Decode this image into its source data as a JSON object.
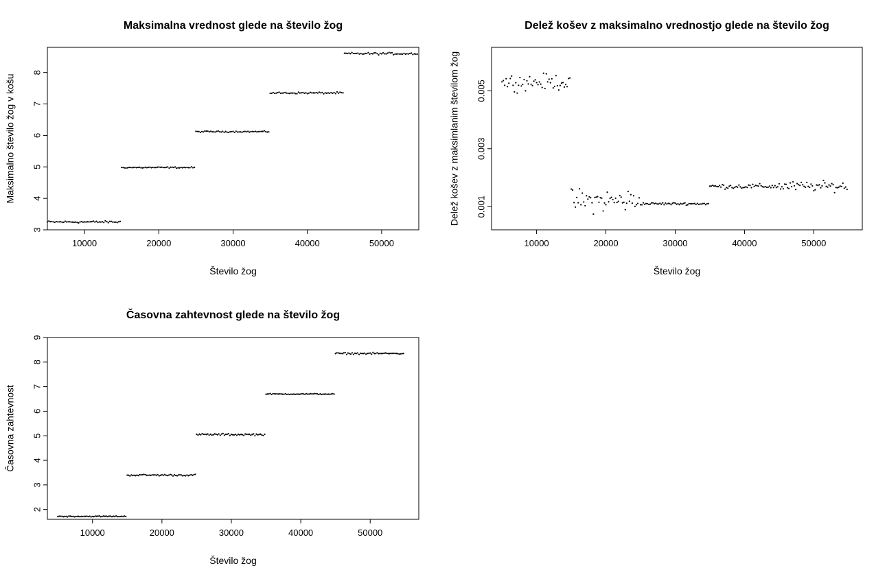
{
  "chart_data": [
    {
      "type": "scatter",
      "title": "Maksimalna vrednost glede na število žog",
      "xlabel": "Število žog",
      "ylabel": "Maksimalno število žog v košu",
      "xlim": [
        5000,
        55000
      ],
      "ylim": [
        3.0,
        8.8
      ],
      "xticks": [
        10000,
        20000,
        30000,
        40000,
        50000
      ],
      "yticks": [
        3,
        4,
        5,
        6,
        7,
        8
      ],
      "xtick_labels": [
        "10000",
        "20000",
        "30000",
        "40000",
        "50000"
      ],
      "ytick_labels": [
        "3",
        "4",
        "5",
        "6",
        "7",
        "8"
      ],
      "grid": false,
      "segments": [
        {
          "x_start": 5000,
          "x_end": 14800,
          "mean": 3.25,
          "spread": 0.05
        },
        {
          "x_start": 15000,
          "x_end": 24800,
          "mean": 4.98,
          "spread": 0.03
        },
        {
          "x_start": 25000,
          "x_end": 34800,
          "mean": 6.12,
          "spread": 0.03
        },
        {
          "x_start": 35000,
          "x_end": 44800,
          "mean": 7.35,
          "spread": 0.04
        },
        {
          "x_start": 45000,
          "x_end": 54800,
          "mean": 8.6,
          "spread": 0.05
        }
      ],
      "step": 200
    },
    {
      "type": "scatter",
      "title": "Delež košev z maksimalno vrednostjo glede na število žog",
      "xlabel": "Število žog",
      "ylabel": "Delež košev z maksimlanim številom žog",
      "xlim": [
        3500,
        57000
      ],
      "ylim": [
        0.0002,
        0.0065
      ],
      "xticks": [
        10000,
        20000,
        30000,
        40000,
        50000
      ],
      "yticks": [
        0.001,
        0.003,
        0.005
      ],
      "xtick_labels": [
        "10000",
        "20000",
        "30000",
        "40000",
        "50000"
      ],
      "ytick_labels": [
        "0.001",
        "0.003",
        "0.005"
      ],
      "grid": false,
      "segments": [
        {
          "x_start": 5000,
          "x_end": 14800,
          "mean": 0.0053,
          "spread": 0.0004
        },
        {
          "x_start": 15000,
          "x_end": 24800,
          "mean": 0.0012,
          "spread": 0.0006
        },
        {
          "x_start": 25000,
          "x_end": 34800,
          "mean": 0.0011,
          "spread": 6e-05
        },
        {
          "x_start": 35000,
          "x_end": 44800,
          "mean": 0.0017,
          "spread": 0.00012
        },
        {
          "x_start": 45000,
          "x_end": 54800,
          "mean": 0.0017,
          "spread": 0.00025
        }
      ],
      "step": 200
    },
    {
      "type": "scatter",
      "title": "Časovna zahtevnost glede na število žog",
      "xlabel": "Število žog",
      "ylabel": "Časovna zahtevnost",
      "xlim": [
        3500,
        57000
      ],
      "ylim": [
        1.6,
        9.0
      ],
      "xticks": [
        10000,
        20000,
        30000,
        40000,
        50000
      ],
      "yticks": [
        2,
        3,
        4,
        5,
        6,
        7,
        8,
        9
      ],
      "xtick_labels": [
        "10000",
        "20000",
        "30000",
        "40000",
        "50000"
      ],
      "ytick_labels": [
        "2",
        "3",
        "4",
        "5",
        "6",
        "7",
        "8",
        "9"
      ],
      "grid": false,
      "segments": [
        {
          "x_start": 5000,
          "x_end": 14800,
          "mean": 1.72,
          "spread": 0.03
        },
        {
          "x_start": 15000,
          "x_end": 24800,
          "mean": 3.4,
          "spread": 0.05
        },
        {
          "x_start": 25000,
          "x_end": 34800,
          "mean": 5.05,
          "spread": 0.06
        },
        {
          "x_start": 35000,
          "x_end": 44800,
          "mean": 6.7,
          "spread": 0.03
        },
        {
          "x_start": 45000,
          "x_end": 54800,
          "mean": 8.35,
          "spread": 0.05
        }
      ],
      "step": 200
    }
  ]
}
